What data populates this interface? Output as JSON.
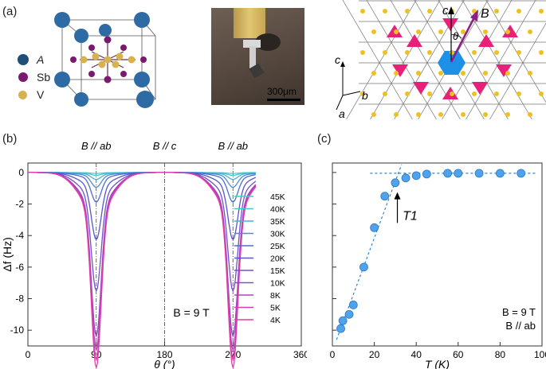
{
  "panels": {
    "a": "(a)",
    "b": "(b)",
    "c": "(c)"
  },
  "structure": {
    "legend": [
      {
        "label": "A",
        "color": "#1f4e79",
        "italic": true
      },
      {
        "label": "Sb",
        "color": "#7a1a6e",
        "italic": false
      },
      {
        "label": "V",
        "color": "#d8b24a",
        "italic": false
      }
    ]
  },
  "photo": {
    "scale_label": "300μm"
  },
  "kagome": {
    "axis_c": "c",
    "axis_B": "B",
    "angle": "θ",
    "triad_c": "c",
    "triad_a": "a",
    "triad_b": "b"
  },
  "chart_data": [
    {
      "type": "line",
      "ylabel": "Δf (Hz)",
      "xlabel": "θ (°)",
      "xlim": [
        0,
        360
      ],
      "ylim": [
        -11,
        0.6
      ],
      "xticks": [
        0,
        90,
        180,
        270,
        360
      ],
      "yticks": [
        0,
        -2,
        -4,
        -6,
        -8,
        -10
      ],
      "annotations": [
        "B // ab",
        "B // c",
        "B // ab",
        "B = 9 T"
      ],
      "series": [
        {
          "name": "45K",
          "color": "#3fd1c8",
          "dip": -0.05
        },
        {
          "name": "40K",
          "color": "#46c2d2",
          "dip": -0.15
        },
        {
          "name": "35K",
          "color": "#4aaed6",
          "dip": -0.35
        },
        {
          "name": "30K",
          "color": "#4b8dd3",
          "dip": -0.75
        },
        {
          "name": "25K",
          "color": "#4c6ecf",
          "dip": -1.5
        },
        {
          "name": "20K",
          "color": "#5656cc",
          "dip": -3.4
        },
        {
          "name": "15K",
          "color": "#7150cb",
          "dip": -6.0
        },
        {
          "name": "10K",
          "color": "#8d48c6",
          "dip": -8.3
        },
        {
          "name": "8K",
          "color": "#b042c0",
          "dip": -9.0
        },
        {
          "name": "5K",
          "color": "#d23eb3",
          "dip": -9.5
        },
        {
          "name": "4K",
          "color": "#e63ca8",
          "dip": -9.9
        }
      ]
    },
    {
      "type": "scatter",
      "xlabel": "T (K)",
      "xlim": [
        0,
        100
      ],
      "ylim": [
        -11,
        0.6
      ],
      "xticks": [
        0,
        20,
        40,
        60,
        80,
        100
      ],
      "annotations": [
        "T1",
        "B = 9 T",
        "B // ab"
      ],
      "x": [
        4,
        5,
        8,
        10,
        15,
        20,
        25,
        30,
        35,
        40,
        45,
        55,
        60,
        70,
        80,
        90
      ],
      "y": [
        -9.9,
        -9.4,
        -9.0,
        -8.4,
        -6.0,
        -3.5,
        -1.5,
        -0.65,
        -0.35,
        -0.2,
        -0.1,
        -0.05,
        -0.05,
        -0.05,
        -0.05,
        -0.05
      ],
      "marker_color": "#4ea3ec"
    }
  ]
}
